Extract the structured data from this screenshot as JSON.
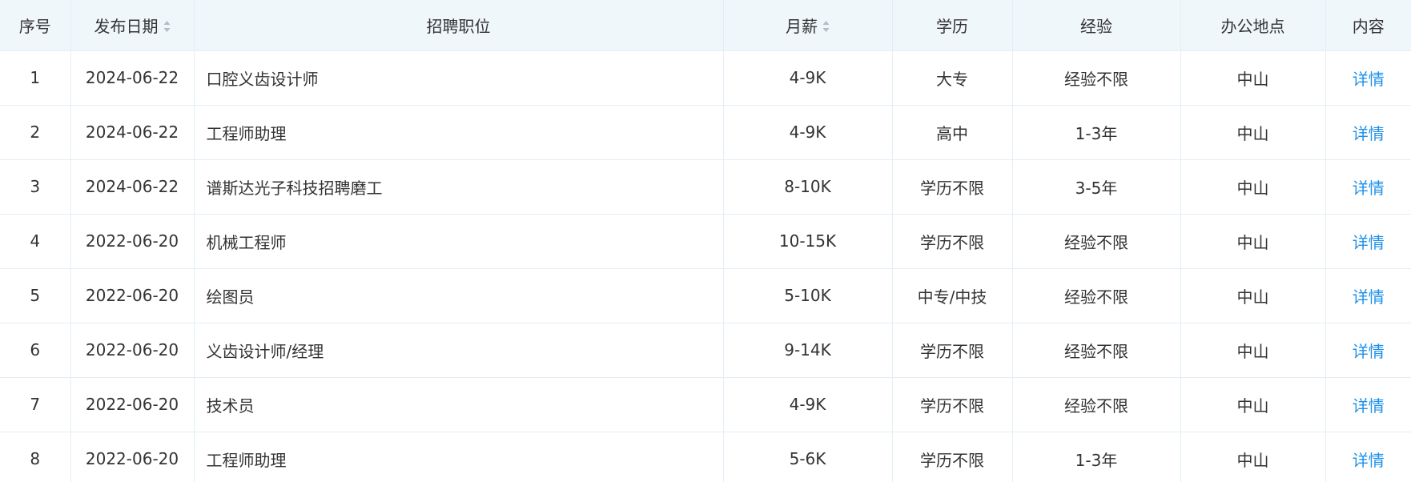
{
  "table": {
    "columns": [
      {
        "key": "index",
        "label": "序号",
        "sortable": false
      },
      {
        "key": "date",
        "label": "发布日期",
        "sortable": true
      },
      {
        "key": "position",
        "label": "招聘职位",
        "sortable": false
      },
      {
        "key": "salary",
        "label": "月薪",
        "sortable": true
      },
      {
        "key": "education",
        "label": "学历",
        "sortable": false
      },
      {
        "key": "experience",
        "label": "经验",
        "sortable": false
      },
      {
        "key": "location",
        "label": "办公地点",
        "sortable": false
      },
      {
        "key": "content",
        "label": "内容",
        "sortable": false
      }
    ],
    "rows": [
      {
        "index": "1",
        "date": "2024-06-22",
        "position": "口腔义齿设计师",
        "salary": "4-9K",
        "education": "大专",
        "experience": "经验不限",
        "location": "中山",
        "content": "详情"
      },
      {
        "index": "2",
        "date": "2024-06-22",
        "position": "工程师助理",
        "salary": "4-9K",
        "education": "高中",
        "experience": "1-3年",
        "location": "中山",
        "content": "详情"
      },
      {
        "index": "3",
        "date": "2024-06-22",
        "position": "谱斯达光子科技招聘磨工",
        "salary": "8-10K",
        "education": "学历不限",
        "experience": "3-5年",
        "location": "中山",
        "content": "详情"
      },
      {
        "index": "4",
        "date": "2022-06-20",
        "position": "机械工程师",
        "salary": "10-15K",
        "education": "学历不限",
        "experience": "经验不限",
        "location": "中山",
        "content": "详情"
      },
      {
        "index": "5",
        "date": "2022-06-20",
        "position": "绘图员",
        "salary": "5-10K",
        "education": "中专/中技",
        "experience": "经验不限",
        "location": "中山",
        "content": "详情"
      },
      {
        "index": "6",
        "date": "2022-06-20",
        "position": "义齿设计师/经理",
        "salary": "9-14K",
        "education": "学历不限",
        "experience": "经验不限",
        "location": "中山",
        "content": "详情"
      },
      {
        "index": "7",
        "date": "2022-06-20",
        "position": "技术员",
        "salary": "4-9K",
        "education": "学历不限",
        "experience": "经验不限",
        "location": "中山",
        "content": "详情"
      },
      {
        "index": "8",
        "date": "2022-06-20",
        "position": "工程师助理",
        "salary": "5-6K",
        "education": "学历不限",
        "experience": "1-3年",
        "location": "中山",
        "content": "详情"
      }
    ]
  },
  "icons": {
    "sort": "sort-caret-icon"
  },
  "colors": {
    "header_bg": "#f0f7fb",
    "border": "#e3eef4",
    "text": "#333333",
    "link": "#1e90e8",
    "sort_icon": "#b5bcc4"
  }
}
